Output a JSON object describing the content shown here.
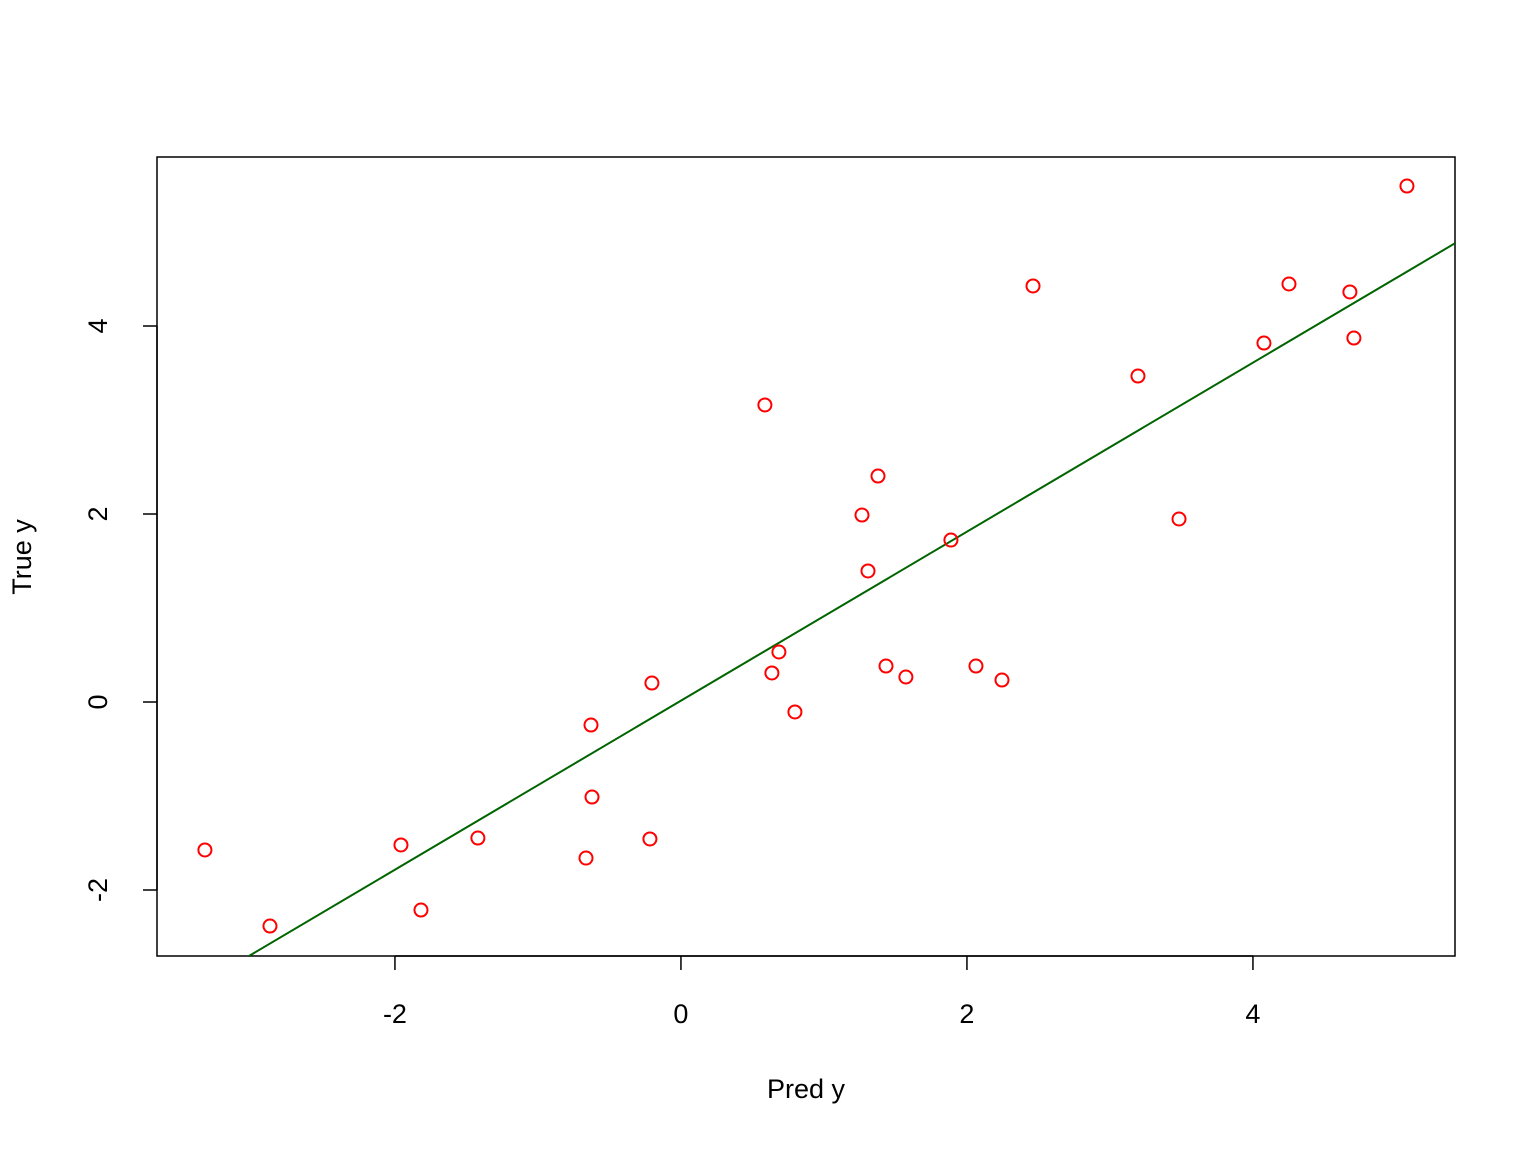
{
  "chart_data": {
    "type": "scatter",
    "x_label": "Pred y",
    "y_label": "True y",
    "x": [
      -3.329,
      -2.874,
      -1.958,
      -1.818,
      -1.42,
      -0.664,
      -0.629,
      -0.622,
      -0.217,
      -0.203,
      0.587,
      0.636,
      0.685,
      0.797,
      1.266,
      1.308,
      1.378,
      1.434,
      1.573,
      1.888,
      2.063,
      2.245,
      2.462,
      3.196,
      3.483,
      4.077,
      4.252,
      4.678,
      4.706,
      5.077
    ],
    "y": [
      -1.574,
      -2.383,
      -1.521,
      -2.213,
      -1.447,
      -1.66,
      -0.245,
      -1.011,
      -1.457,
      0.202,
      3.16,
      0.309,
      0.532,
      -0.106,
      1.989,
      1.394,
      2.404,
      0.383,
      0.266,
      1.723,
      0.383,
      0.234,
      4.426,
      3.468,
      1.947,
      3.819,
      4.447,
      4.362,
      3.872,
      5.489
    ],
    "color": "#ff0000",
    "fit_line": {
      "intercept": 0.014,
      "slope": 0.899,
      "color": "#006400"
    },
    "xlim": [
      -3.664,
      5.413
    ],
    "ylim": [
      -2.702,
      5.798
    ],
    "xticks": [
      -2,
      0,
      2,
      4
    ],
    "yticks": [
      -2,
      0,
      2,
      4
    ]
  }
}
